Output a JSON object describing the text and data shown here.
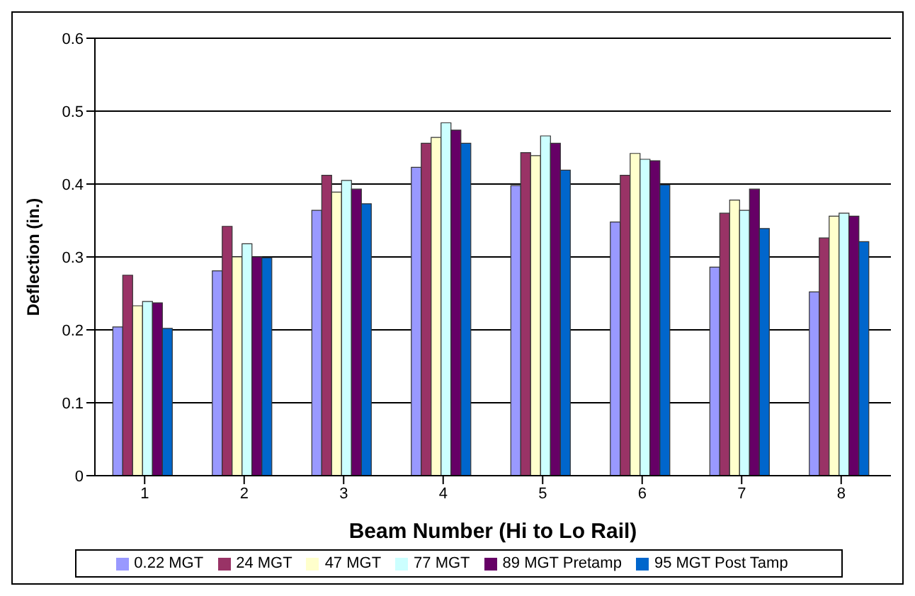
{
  "chart_data": {
    "type": "bar",
    "xlabel": "Beam Number (Hi to Lo Rail)",
    "ylabel": "Deflection (in.)",
    "categories": [
      "1",
      "2",
      "3",
      "4",
      "5",
      "6",
      "7",
      "8"
    ],
    "series": [
      {
        "name": "0.22 MGT",
        "color": "#9999ff",
        "values": [
          0.204,
          0.281,
          0.364,
          0.423,
          0.398,
          0.348,
          0.286,
          0.252
        ]
      },
      {
        "name": "24 MGT",
        "color": "#993366",
        "values": [
          0.275,
          0.342,
          0.412,
          0.456,
          0.443,
          0.412,
          0.36,
          0.326
        ]
      },
      {
        "name": "47 MGT",
        "color": "#ffffcc",
        "values": [
          0.233,
          0.3,
          0.389,
          0.464,
          0.439,
          0.442,
          0.378,
          0.356
        ]
      },
      {
        "name": "77 MGT",
        "color": "#ccffff",
        "values": [
          0.239,
          0.318,
          0.405,
          0.484,
          0.466,
          0.434,
          0.364,
          0.36
        ]
      },
      {
        "name": "89 MGT Pretamp",
        "color": "#660066",
        "values": [
          0.237,
          0.3,
          0.393,
          0.474,
          0.456,
          0.432,
          0.393,
          0.356
        ]
      },
      {
        "name": "95 MGT Post Tamp",
        "color": "#0066cc",
        "values": [
          0.202,
          0.299,
          0.373,
          0.456,
          0.419,
          0.399,
          0.339,
          0.321
        ]
      }
    ],
    "ylim": [
      0,
      0.6
    ],
    "yticks": [
      0,
      0.1,
      0.2,
      0.3,
      0.4,
      0.5,
      0.6
    ],
    "grid": "y",
    "legend": "bottom"
  }
}
